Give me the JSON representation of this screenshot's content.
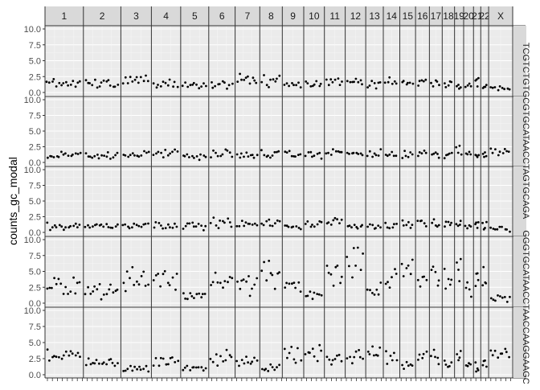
{
  "chart_data": {
    "type": "scatter",
    "ylabel": "counts_gc_modal",
    "xlabel": "",
    "ylim": [
      0,
      10
    ],
    "y_ticks": [
      "0.0",
      "2.5",
      "5.0",
      "7.5",
      "10.0"
    ],
    "grid": true,
    "theme": "ggplot2 grey",
    "column_facets": [
      "1",
      "2",
      "3",
      "4",
      "5",
      "6",
      "7",
      "8",
      "9",
      "10",
      "11",
      "12",
      "13",
      "14",
      "15",
      "16",
      "17",
      "18",
      "19",
      "20",
      "21",
      "22",
      "X"
    ],
    "column_facet_labels": [
      "1",
      "2",
      "3",
      "4",
      "5",
      "6",
      "7",
      "8",
      "9",
      "10",
      "11",
      "12",
      "13",
      "14",
      "15",
      "16",
      "17",
      "18",
      "19",
      "20",
      "21",
      "22",
      "X"
    ],
    "row_facets": [
      "TCGTCTGTGCGTGCATAACCTAGTGCAGA",
      "",
      "",
      "GGGTGCATAACCTAACCAAGGAAGC",
      ""
    ],
    "row_levels": [
      [
        1.5,
        1.5,
        2.0,
        1.3,
        1.1,
        1.2,
        2.0,
        1.8,
        1.3,
        1.4,
        1.7,
        1.5,
        1.3,
        1.6,
        1.6,
        1.8,
        1.7,
        1.3,
        1.0,
        1.0,
        1.8,
        1.1,
        0.7
      ],
      [
        1.3,
        1.0,
        1.4,
        1.5,
        1.0,
        1.5,
        1.1,
        1.3,
        1.2,
        1.2,
        1.6,
        1.4,
        1.4,
        1.1,
        1.2,
        1.4,
        1.2,
        1.2,
        1.8,
        1.4,
        1.2,
        1.8,
        1.8
      ],
      [
        1.0,
        1.0,
        1.2,
        1.3,
        1.0,
        1.6,
        1.2,
        1.4,
        1.1,
        1.3,
        1.5,
        1.2,
        1.1,
        1.1,
        1.4,
        1.6,
        1.3,
        1.2,
        1.3,
        1.0,
        1.3,
        1.0,
        0.6
      ],
      [
        2.8,
        2.0,
        4.2,
        3.5,
        1.3,
        3.5,
        3.0,
        5.0,
        2.5,
        1.3,
        4.5,
        6.5,
        2.2,
        4.5,
        5.0,
        4.0,
        4.5,
        4.0,
        5.5,
        2.0,
        4.5,
        3.5,
        1.0
      ],
      [
        2.8,
        1.8,
        1.0,
        2.4,
        1.0,
        2.6,
        2.2,
        1.1,
        3.3,
        3.2,
        2.4,
        3.0,
        3.5,
        2.8,
        1.3,
        2.5,
        3.0,
        2.0,
        3.5,
        1.5,
        1.3,
        1.5,
        3.0
      ]
    ]
  }
}
